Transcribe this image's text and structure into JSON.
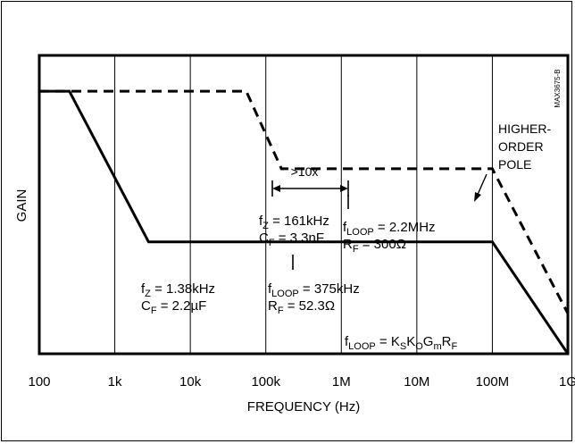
{
  "chart_data": {
    "type": "line",
    "xscale": "log",
    "xlim": [
      100,
      1000000000
    ],
    "grid": true,
    "xlabel": "FREQUENCY (Hz)",
    "ylabel": "GAIN",
    "watermark": "MAX3675-B",
    "x_ticks": [
      {
        "value": 100,
        "label": "100"
      },
      {
        "value": 1000,
        "label": "1k"
      },
      {
        "value": 10000,
        "label": "10k"
      },
      {
        "value": 100000,
        "label": "100k"
      },
      {
        "value": 1000000,
        "label": "1M"
      },
      {
        "value": 10000000,
        "label": "10M"
      },
      {
        "value": 100000000,
        "label": "100M"
      },
      {
        "value": 1000000000,
        "label": "1G"
      }
    ],
    "ylim": [
      0,
      1
    ],
    "series": [
      {
        "style": "solid",
        "x": [
          100,
          250,
          2800,
          100000000,
          1000000000
        ],
        "y": [
          0.88,
          0.88,
          0.375,
          0.375,
          0.0
        ]
      },
      {
        "style": "dashed",
        "x": [
          100,
          55000,
          161000,
          100000000,
          1000000000
        ],
        "y": [
          0.88,
          0.88,
          0.62,
          0.62,
          0.135
        ]
      }
    ],
    "annotations": {
      "separation": ">10x",
      "higher_order_pole": [
        "HIGHER-",
        "ORDER",
        "POLE"
      ],
      "fz_low": [
        "f_Z = 1.38kHz",
        "C_F = 2.2µF"
      ],
      "floop_low": [
        "f_LOOP = 375kHz",
        "R_F = 52.3Ω"
      ],
      "fz_high": [
        "f_Z = 161kHz",
        "C_F = 3.3nF"
      ],
      "floop_high": [
        "f_LOOP = 2.2MHz",
        "R_F = 300Ω"
      ],
      "floop_formula": "f_LOOP = K_SK_OG_mR_F"
    }
  }
}
